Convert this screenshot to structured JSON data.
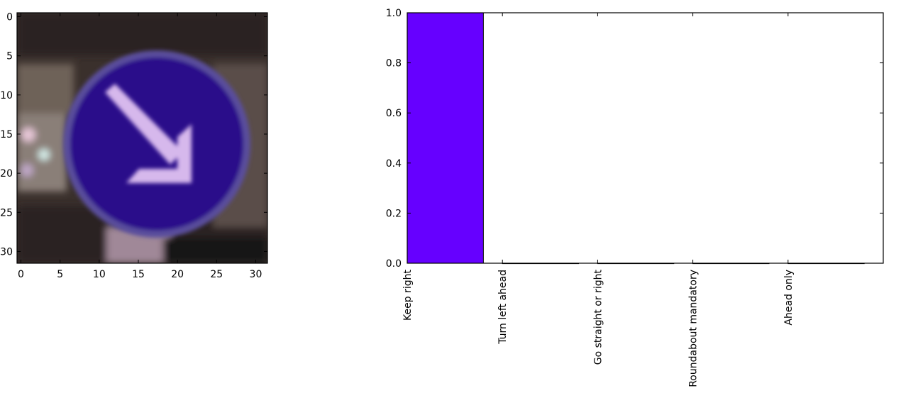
{
  "chart_data": [
    {
      "type": "image",
      "xlim": [
        -0.5,
        31.5
      ],
      "ylim": [
        31.5,
        -0.5
      ],
      "x_ticks": [
        "0",
        "5",
        "10",
        "15",
        "20",
        "25",
        "30"
      ],
      "y_ticks": [
        "0",
        "5",
        "10",
        "15",
        "20",
        "25",
        "30"
      ],
      "image_content": "traffic sign: blue circle with white diagonal arrow pointing down-right",
      "colors": {
        "sign": "#2a0a8a",
        "arrow": "#d6b8ec",
        "background": "#3a302c"
      }
    },
    {
      "type": "bar",
      "categories": [
        "Keep right",
        "Turn left ahead",
        "Go straight or right",
        "Roundabout mandatory",
        "Ahead only"
      ],
      "values": [
        1.0,
        0.0,
        0.0,
        0.0,
        0.0
      ],
      "ylim": [
        0.0,
        1.0
      ],
      "y_ticks": [
        "0.0",
        "0.2",
        "0.4",
        "0.6",
        "0.8",
        "1.0"
      ],
      "bar_color": "#6600ff",
      "grid": false
    }
  ]
}
